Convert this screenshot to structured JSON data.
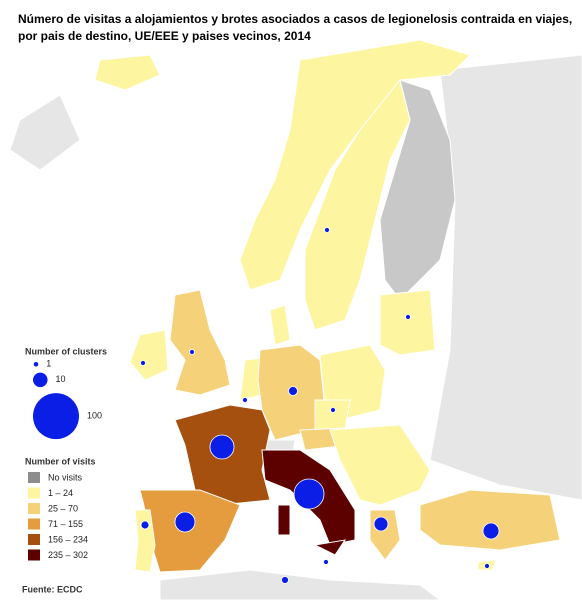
{
  "title_lines": [
    "Número de visitas a alojamientos y brotes asociados a casos de legionelosis contraida en viajes,",
    "por pais de destino, UE/EEE y paises vecinos, 2014"
  ],
  "clusters_legend": {
    "title": "Number of clusters",
    "sizes": [
      1,
      10,
      100
    ],
    "color": "#0a1ee6"
  },
  "visits_legend": {
    "title": "Number of visits",
    "items": [
      {
        "label": "No visits",
        "color": "#8c8c8c"
      },
      {
        "label": "1 – 24",
        "color": "#fdf5a0"
      },
      {
        "label": "25 – 70",
        "color": "#f5d27a"
      },
      {
        "label": "71 – 155",
        "color": "#e49c3f"
      },
      {
        "label": "156 – 234",
        "color": "#a6500f"
      },
      {
        "label": "235 – 302",
        "color": "#5c0000"
      }
    ]
  },
  "source": "Fuente: ECDC"
}
